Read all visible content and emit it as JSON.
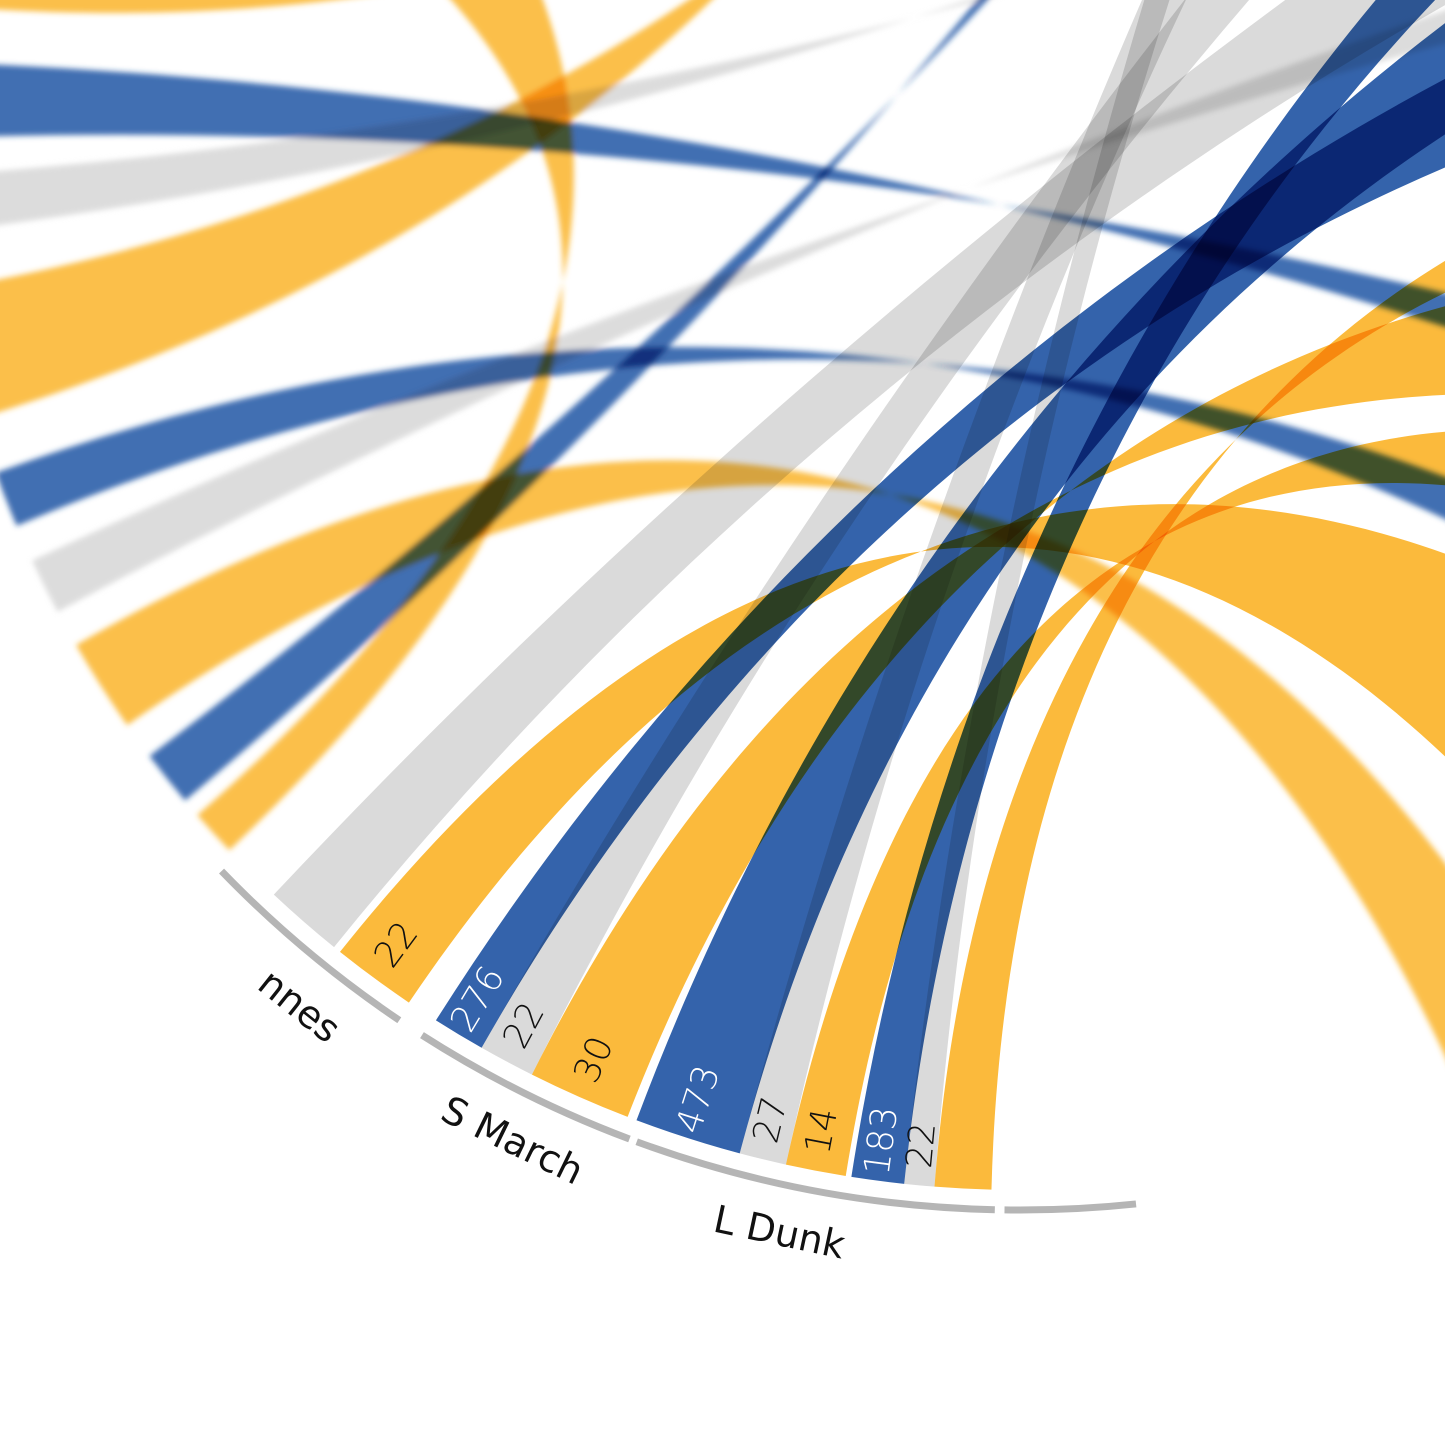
{
  "colors": {
    "blue": "#2256a4",
    "gold": "#fbb42b",
    "grey": "#d6d6d6",
    "arc": "#b5b5b5",
    "label_on_blue": "#ffffff",
    "label_on_light": "#111111"
  },
  "chart_data": {
    "type": "chord",
    "title": "",
    "groups": [
      {
        "label": "nnes",
        "flows": [
          {
            "category": "grey",
            "value": null
          },
          {
            "category": "gold",
            "value": 22,
            "label": "22"
          }
        ]
      },
      {
        "label": "S March",
        "flows": [
          {
            "category": "blue",
            "value": 276,
            "label": "276"
          },
          {
            "category": "grey",
            "value": 22,
            "label": "22"
          },
          {
            "category": "gold",
            "value": 30,
            "label": "30"
          }
        ]
      },
      {
        "label": "L Dunk",
        "flows": [
          {
            "category": "blue",
            "value": 473,
            "label": "473"
          },
          {
            "category": "grey",
            "value": 27,
            "label": "27"
          },
          {
            "category": "gold",
            "value": 14,
            "label": "14"
          }
        ]
      },
      {
        "label": "",
        "flows": [
          {
            "category": "blue",
            "value": 183,
            "label": "183"
          },
          {
            "category": "grey",
            "value": 22,
            "label": "22"
          },
          {
            "category": "gold",
            "value": null
          }
        ]
      }
    ]
  }
}
